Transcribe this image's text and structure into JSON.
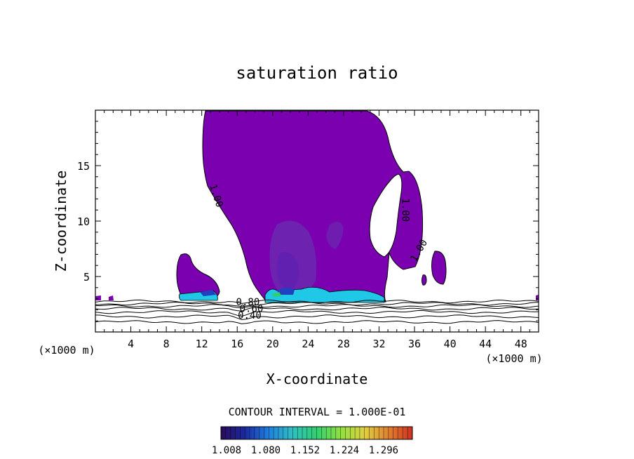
{
  "chart_data": {
    "type": "contour",
    "title": "saturation ratio",
    "xlabel": "X-coordinate",
    "ylabel": "Z-coordinate",
    "x_unit_left": "(×1000 m)",
    "x_unit_right": "(×1000 m)",
    "xlim": [
      0,
      50
    ],
    "ylim": [
      0,
      20
    ],
    "x_ticks": [
      4,
      8,
      12,
      16,
      20,
      24,
      28,
      32,
      36,
      40,
      44,
      48
    ],
    "y_ticks": [
      5,
      10,
      15
    ],
    "contour_interval_text": "CONTOUR INTERVAL = 1.000E-01",
    "contour_labels": [
      {
        "text": "1.00",
        "x": 13.3,
        "z": 12.2,
        "rotation": 72
      },
      {
        "text": "1.00",
        "x": 34.6,
        "z": 11.0,
        "rotation": 90
      },
      {
        "text": "1.00",
        "x": 36.8,
        "z": 7.2,
        "rotation": -60
      },
      {
        "text": "0.80",
        "x": 17.2,
        "z": 2.4,
        "rotation": 0
      },
      {
        "text": "0.60",
        "x": 17.6,
        "z": 1.8,
        "rotation": 0
      },
      {
        "text": "0.40",
        "x": 17.4,
        "z": 1.2,
        "rotation": 0
      }
    ],
    "colorbar": {
      "ticks": [
        "1.008",
        "1.080",
        "1.152",
        "1.224",
        "1.296"
      ],
      "colors": [
        "#2a0a5a",
        "#1a2aa0",
        "#2080e0",
        "#30c0c0",
        "#30d070",
        "#90e040",
        "#e0d040",
        "#e08030",
        "#d03020"
      ]
    },
    "fill_colors": {
      "supersaturated": "#7a00b0",
      "core": "#6a2ab0",
      "base_cyan": "#20c8e8",
      "base_blue": "#2040c0"
    }
  }
}
